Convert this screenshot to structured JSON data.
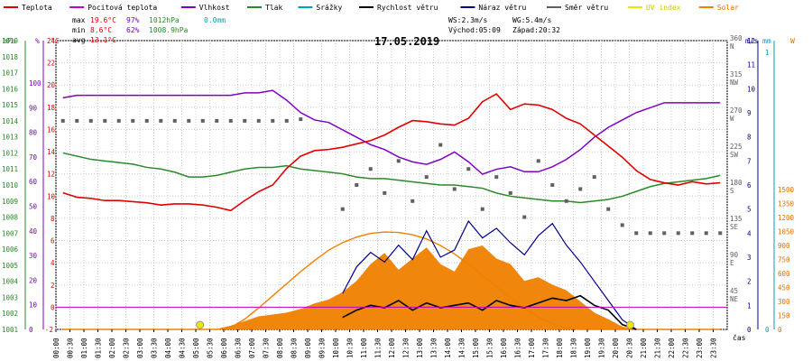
{
  "title": "17.05.2019",
  "legend": [
    {
      "label": "Teplota",
      "color": "#e00000"
    },
    {
      "label": "Pocitová teplota",
      "color": "#c000c0"
    },
    {
      "label": "Vlhkost",
      "color": "#8000c0"
    },
    {
      "label": "Tlak",
      "color": "#2a8a2a"
    },
    {
      "label": "Srážky",
      "color": "#00a0c0"
    },
    {
      "label": "Rychlost větru",
      "color": "#000000"
    },
    {
      "label": "Náraz větru",
      "color": "#00008b"
    },
    {
      "label": "Směr větru",
      "color": "#606060"
    },
    {
      "label": "UV index",
      "color": "#e8e800"
    },
    {
      "label": "Solar",
      "color": "#f08000"
    }
  ],
  "stats": {
    "max_label": "max",
    "max_temp": "19.6°C",
    "max_hum": "97%",
    "max_press": "1012hPa",
    "rain": "0.0mm",
    "min_label": "min",
    "min_temp": "8.6°C",
    "min_hum": "62%",
    "min_press": "1008.9hPa",
    "avg_label": "avg",
    "avg_temp": "13.1°C",
    "ws": "WS:2.3m/s",
    "wg": "WG:5.4m/s",
    "sunrise": "Východ:05:09",
    "sunset": "Západ:20:32"
  },
  "axis_units": {
    "hpa": "hPa",
    "pct": "%",
    "deg": "°C",
    "ms": "m/s",
    "mm": "mm",
    "w": "W",
    "time": "čas"
  },
  "chart_data": {
    "type": "line",
    "x": [
      "00:00",
      "00:30",
      "01:00",
      "01:30",
      "02:00",
      "02:30",
      "03:00",
      "03:30",
      "04:00",
      "04:30",
      "05:00",
      "05:30",
      "06:00",
      "06:30",
      "07:00",
      "07:30",
      "08:00",
      "08:30",
      "09:00",
      "09:30",
      "10:00",
      "10:30",
      "11:00",
      "11:30",
      "12:00",
      "12:30",
      "13:00",
      "13:30",
      "14:00",
      "14:30",
      "15:00",
      "15:30",
      "16:00",
      "16:30",
      "17:00",
      "17:30",
      "18:00",
      "18:30",
      "19:00",
      "19:30",
      "20:00",
      "20:30",
      "21:00",
      "21:30",
      "22:00",
      "22:30",
      "23:00",
      "23:30"
    ],
    "axes": {
      "pressure": {
        "label": "hPa",
        "ticks": [
          1001,
          1002,
          1003,
          1004,
          1005,
          1006,
          1007,
          1008,
          1009,
          1010,
          1011,
          1012,
          1013,
          1014,
          1015,
          1016,
          1017,
          1018,
          1019
        ]
      },
      "humidity": {
        "label": "%",
        "ticks": [
          0,
          10,
          20,
          30,
          40,
          50,
          60,
          70,
          80,
          90,
          100
        ]
      },
      "temperature": {
        "label": "°C",
        "ticks": [
          -2,
          0,
          2,
          4,
          6,
          8,
          10,
          12,
          14,
          16,
          18,
          20,
          22,
          24
        ]
      },
      "direction": {
        "ticks": [
          "NE 45",
          "E 90",
          "SE 135",
          "S 180",
          "SW 225",
          "W 270",
          "NW 315",
          "N 360"
        ]
      },
      "wind": {
        "label": "m/s",
        "ticks": [
          0,
          1,
          2,
          3,
          4,
          5,
          6,
          7,
          8,
          9,
          10,
          11,
          12
        ]
      },
      "rain": {
        "label": "mm",
        "ticks": [
          0,
          1
        ]
      },
      "solar": {
        "label": "W",
        "ticks": [
          0,
          150,
          300,
          450,
          600,
          750,
          900,
          1050,
          1200,
          1350,
          1500
        ]
      }
    },
    "series": [
      {
        "name": "Teplota",
        "axis": "temperature",
        "color": "#e00000",
        "values": [
          10.3,
          9.9,
          9.8,
          9.6,
          9.6,
          9.5,
          9.4,
          9.2,
          9.3,
          9.3,
          9.2,
          9.0,
          8.7,
          9.6,
          10.4,
          11.0,
          12.5,
          13.6,
          14.1,
          14.2,
          14.4,
          14.7,
          15.0,
          15.5,
          16.2,
          16.8,
          16.7,
          16.5,
          16.4,
          17.0,
          18.5,
          19.2,
          17.8,
          18.3,
          18.2,
          17.8,
          17.0,
          16.5,
          15.5,
          14.5,
          13.5,
          12.3,
          11.5,
          11.2,
          11.0,
          11.3,
          11.1,
          11.2
        ]
      },
      {
        "name": "Vlhkost",
        "axis": "humidity",
        "color": "#8000c0",
        "values": [
          94,
          95,
          95,
          95,
          95,
          95,
          95,
          95,
          95,
          95,
          95,
          95,
          95,
          96,
          96,
          97,
          93,
          88,
          85,
          84,
          81,
          78,
          75,
          73,
          70,
          68,
          67,
          69,
          72,
          68,
          63,
          65,
          66,
          64,
          64,
          66,
          69,
          73,
          78,
          82,
          85,
          88,
          90,
          92,
          92,
          92,
          92,
          92
        ]
      },
      {
        "name": "Tlak",
        "axis": "pressure",
        "color": "#2a8a2a",
        "values": [
          1012.0,
          1011.8,
          1011.6,
          1011.5,
          1011.4,
          1011.3,
          1011.1,
          1011.0,
          1010.8,
          1010.5,
          1010.5,
          1010.6,
          1010.8,
          1011.0,
          1011.1,
          1011.1,
          1011.2,
          1011.0,
          1010.9,
          1010.8,
          1010.7,
          1010.5,
          1010.4,
          1010.4,
          1010.3,
          1010.2,
          1010.1,
          1010.0,
          1010.0,
          1009.9,
          1009.8,
          1009.5,
          1009.3,
          1009.2,
          1009.1,
          1009.0,
          1009.0,
          1008.9,
          1009.0,
          1009.1,
          1009.3,
          1009.6,
          1009.9,
          1010.1,
          1010.2,
          1010.3,
          1010.4,
          1010.6
        ]
      },
      {
        "name": "Rychlost větru",
        "axis": "wind",
        "color": "#000000",
        "values": [
          null,
          null,
          null,
          null,
          null,
          null,
          null,
          null,
          null,
          null,
          null,
          null,
          null,
          null,
          null,
          null,
          null,
          null,
          null,
          null,
          0.5,
          0.8,
          1.0,
          0.9,
          1.2,
          0.8,
          1.1,
          0.9,
          1.0,
          1.1,
          0.8,
          1.2,
          1.0,
          0.9,
          1.1,
          1.3,
          1.2,
          1.4,
          1.0,
          0.8,
          0.2,
          0.0,
          null,
          null,
          null,
          null,
          null,
          null
        ]
      },
      {
        "name": "Náraz větru",
        "axis": "wind",
        "color": "#00008b",
        "values": [
          null,
          null,
          null,
          null,
          null,
          null,
          null,
          null,
          null,
          null,
          null,
          null,
          null,
          null,
          null,
          null,
          null,
          null,
          null,
          null,
          1.5,
          2.6,
          3.2,
          2.8,
          3.5,
          2.9,
          4.1,
          3.0,
          3.3,
          4.5,
          3.8,
          4.2,
          3.6,
          3.1,
          3.9,
          4.4,
          3.5,
          2.8,
          2.0,
          1.2,
          0.4,
          0.0,
          null,
          null,
          null,
          null,
          null,
          null
        ]
      },
      {
        "name": "Směr větru",
        "axis": "direction",
        "color": "#606060",
        "values": [
          260,
          260,
          260,
          260,
          260,
          260,
          260,
          260,
          260,
          260,
          260,
          260,
          260,
          260,
          260,
          260,
          260,
          262,
          null,
          null,
          150,
          180,
          200,
          170,
          210,
          160,
          190,
          230,
          175,
          200,
          150,
          190,
          170,
          140,
          210,
          180,
          160,
          175,
          190,
          150,
          130,
          120,
          120,
          120,
          120,
          120,
          120,
          120
        ]
      },
      {
        "name": "Solar",
        "axis": "solar",
        "color": "#f08000",
        "values": [
          0,
          0,
          0,
          0,
          0,
          0,
          0,
          0,
          0,
          0,
          0,
          5,
          40,
          90,
          140,
          160,
          180,
          220,
          280,
          320,
          400,
          520,
          700,
          820,
          640,
          760,
          880,
          700,
          620,
          860,
          900,
          760,
          700,
          520,
          560,
          480,
          420,
          300,
          180,
          110,
          30,
          0,
          0,
          0,
          0,
          0,
          0,
          0
        ]
      },
      {
        "name": "Solar max",
        "axis": "solar",
        "color": "#f08000",
        "values": [
          0,
          0,
          0,
          0,
          0,
          0,
          0,
          0,
          0,
          0,
          0,
          0,
          20,
          110,
          230,
          360,
          490,
          620,
          740,
          850,
          930,
          990,
          1030,
          1045,
          1040,
          1015,
          970,
          900,
          810,
          700,
          580,
          460,
          340,
          230,
          130,
          60,
          15,
          0,
          0,
          0,
          0,
          0,
          0,
          0,
          0,
          0,
          0,
          0
        ]
      }
    ],
    "dew_point_line": 0,
    "uv_markers": [
      "05:09",
      "20:32"
    ]
  }
}
